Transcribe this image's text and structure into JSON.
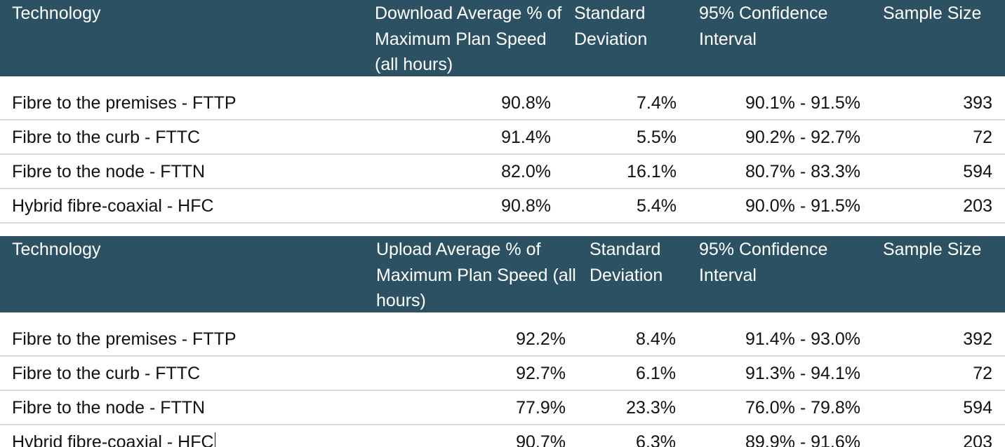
{
  "download": {
    "headers": {
      "technology": "Technology",
      "average": "Download Average % of Maximum Plan Speed (all hours)",
      "std_dev": "Standard Deviation",
      "ci": "95% Confidence Interval",
      "sample": "Sample Size"
    },
    "rows": [
      {
        "technology": "Fibre to the premises - FTTP",
        "average": "90.8%",
        "std_dev": "7.4%",
        "ci": "90.1% - 91.5%",
        "sample": "393"
      },
      {
        "technology": "Fibre to the curb - FTTC",
        "average": "91.4%",
        "std_dev": "5.5%",
        "ci": "90.2% - 92.7%",
        "sample": "72"
      },
      {
        "technology": "Fibre to the node - FTTN",
        "average": "82.0%",
        "std_dev": "16.1%",
        "ci": "80.7% - 83.3%",
        "sample": "594"
      },
      {
        "technology": "Hybrid fibre-coaxial - HFC",
        "average": "90.8%",
        "std_dev": "5.4%",
        "ci": "90.0% - 91.5%",
        "sample": "203"
      }
    ]
  },
  "upload": {
    "headers": {
      "technology": "Technology",
      "average": "Upload Average % of Maximum Plan Speed (all hours)",
      "std_dev": "Standard Deviation",
      "ci": "95% Confidence Interval",
      "sample": "Sample Size"
    },
    "rows": [
      {
        "technology": "Fibre to the premises - FTTP",
        "average": "92.2%",
        "std_dev": "8.4%",
        "ci": "91.4% - 93.0%",
        "sample": "392"
      },
      {
        "technology": "Fibre to the curb - FTTC",
        "average": "92.7%",
        "std_dev": "6.1%",
        "ci": "91.3% - 94.1%",
        "sample": "72"
      },
      {
        "technology": "Fibre to the node - FTTN",
        "average": "77.9%",
        "std_dev": "23.3%",
        "ci": "76.0% - 79.8%",
        "sample": "594"
      },
      {
        "technology": "Hybrid fibre-coaxial - HFC",
        "average": "90.7%",
        "std_dev": "6.3%",
        "ci": "89.9% - 91.6%",
        "sample": "203"
      }
    ]
  },
  "colors": {
    "header_bg": "#2c5163",
    "header_text": "#ffffff",
    "row_border": "#d9d9d9"
  }
}
